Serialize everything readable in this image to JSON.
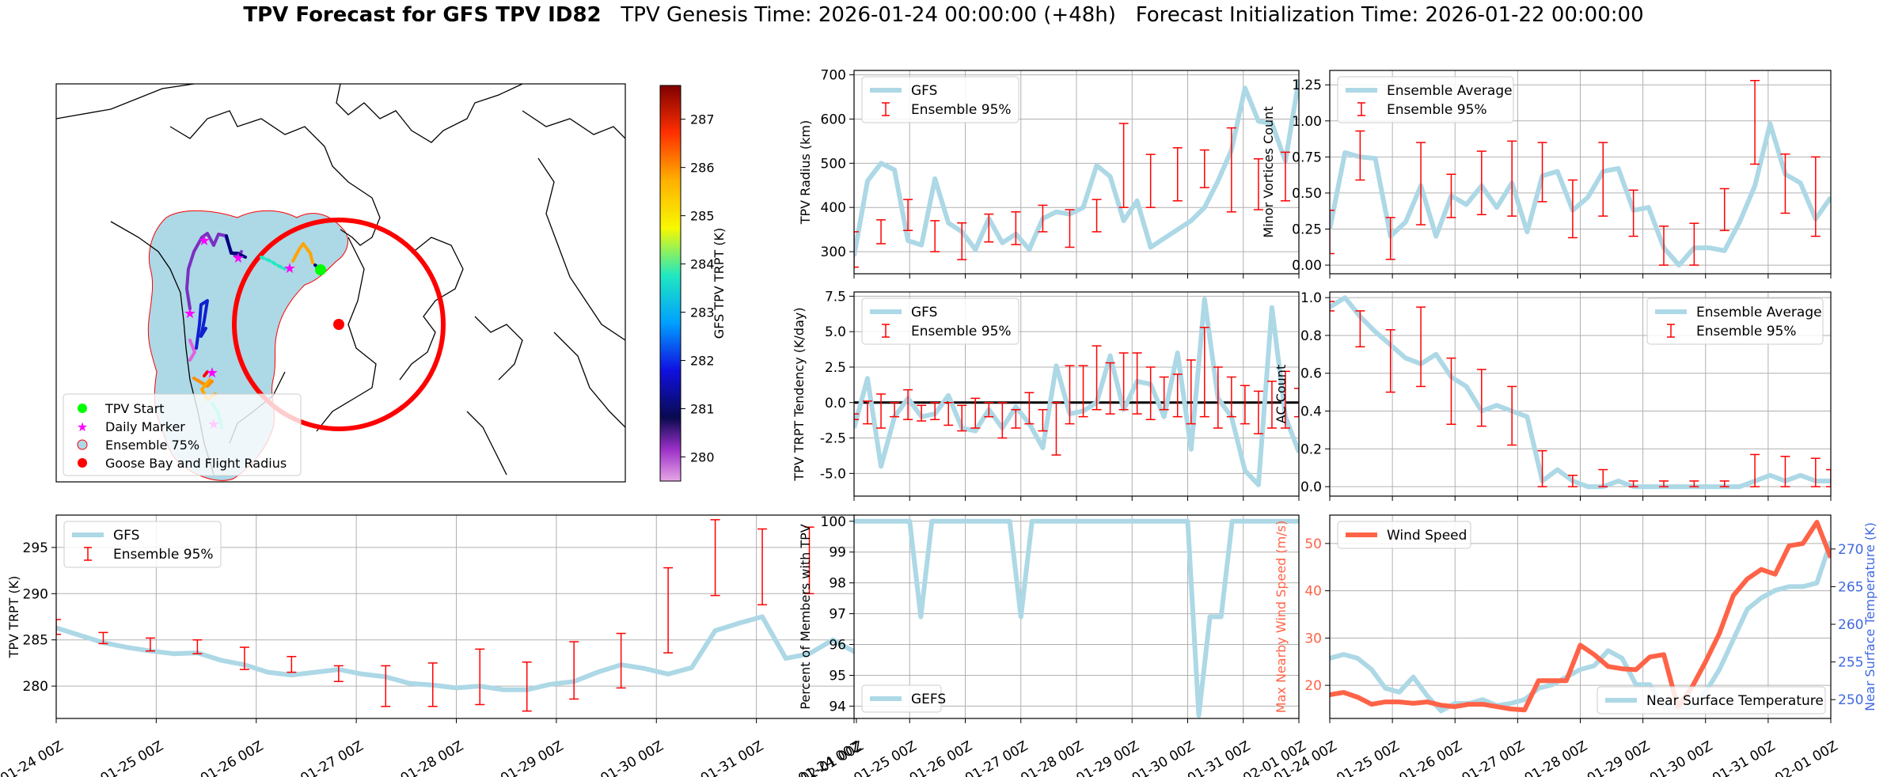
{
  "title": {
    "main": "TPV Forecast for GFS TPV ID82",
    "genesis": "TPV Genesis Time: 2026-01-24 00:00:00 (+48h)",
    "init": "Forecast Initialization Time: 2026-01-22 00:00:00"
  },
  "date_ticks": [
    "01-24 00Z",
    "01-25 00Z",
    "01-26 00Z",
    "01-27 00Z",
    "01-28 00Z",
    "01-29 00Z",
    "01-30 00Z",
    "01-31 00Z",
    "02-01 00Z"
  ],
  "map": {
    "legend": [
      "TPV Start",
      "Daily Marker",
      "Ensemble 75%",
      "Goose Bay and Flight Radius"
    ],
    "colorbar_label": "GFS TPV TRPT (K)",
    "colorbar_ticks": [
      280,
      281,
      282,
      283,
      284,
      285,
      286,
      287
    ],
    "colorbar_range": [
      279.5,
      287.7
    ]
  },
  "chart_data": [
    {
      "type": "line",
      "id": "radius",
      "ylabel": "TPV Radius (km)",
      "ylim": [
        250,
        710
      ],
      "yticks": [
        300,
        400,
        500,
        600,
        700
      ],
      "legend": [
        "GFS",
        "Ensemble 95%"
      ],
      "legend_loc": "upper-left",
      "x_start": "2026-01-24 00Z",
      "x_step_hours": 6,
      "series": [
        {
          "name": "GFS",
          "color": "#add8e6",
          "values": [
            290,
            460,
            500,
            485,
            325,
            315,
            465,
            365,
            345,
            305,
            375,
            320,
            340,
            305,
            375,
            390,
            385,
            400,
            495,
            470,
            370,
            415,
            310,
            330,
            350,
            370,
            400,
            460,
            530,
            670,
            595,
            590,
            505,
            690
          ]
        }
      ],
      "errorbars": [
        {
          "x_index": 0,
          "low": 265,
          "high": 345
        },
        {
          "x_index": 2,
          "low": 318,
          "high": 372
        },
        {
          "x_index": 4,
          "low": 348,
          "high": 418
        },
        {
          "x_index": 6,
          "low": 300,
          "high": 370
        },
        {
          "x_index": 8,
          "low": 282,
          "high": 365
        },
        {
          "x_index": 10,
          "low": 322,
          "high": 385
        },
        {
          "x_index": 12,
          "low": 316,
          "high": 390
        },
        {
          "x_index": 14,
          "low": 345,
          "high": 405
        },
        {
          "x_index": 16,
          "low": 310,
          "high": 395
        },
        {
          "x_index": 18,
          "low": 345,
          "high": 418
        },
        {
          "x_index": 20,
          "low": 400,
          "high": 590
        },
        {
          "x_index": 22,
          "low": 400,
          "high": 520
        },
        {
          "x_index": 24,
          "low": 415,
          "high": 535
        },
        {
          "x_index": 26,
          "low": 445,
          "high": 530
        },
        {
          "x_index": 28,
          "low": 390,
          "high": 580
        },
        {
          "x_index": 30,
          "low": 395,
          "high": 510
        },
        {
          "x_index": 32,
          "low": 415,
          "high": 525
        }
      ]
    },
    {
      "type": "line",
      "id": "minor",
      "ylabel": "Minor Vortices Count",
      "ylim": [
        -0.06,
        1.35
      ],
      "yticks": [
        0.0,
        0.25,
        0.5,
        0.75,
        1.0,
        1.25
      ],
      "legend": [
        "Ensemble Average",
        "Ensemble 95%"
      ],
      "legend_loc": "upper-left",
      "series": [
        {
          "name": "Ensemble Average",
          "color": "#add8e6",
          "values": [
            0.25,
            0.78,
            0.75,
            0.74,
            0.2,
            0.3,
            0.55,
            0.2,
            0.48,
            0.42,
            0.55,
            0.4,
            0.57,
            0.23,
            0.62,
            0.65,
            0.38,
            0.47,
            0.65,
            0.67,
            0.38,
            0.4,
            0.12,
            0.0,
            0.12,
            0.12,
            0.1,
            0.3,
            0.55,
            0.98,
            0.63,
            0.57,
            0.32,
            0.47
          ]
        }
      ],
      "errorbars": [
        {
          "x_index": 0,
          "low": 0.08,
          "high": 0.38
        },
        {
          "x_index": 2,
          "low": 0.59,
          "high": 0.93
        },
        {
          "x_index": 4,
          "low": 0.04,
          "high": 0.33
        },
        {
          "x_index": 6,
          "low": 0.28,
          "high": 0.85
        },
        {
          "x_index": 8,
          "low": 0.33,
          "high": 0.63
        },
        {
          "x_index": 10,
          "low": 0.35,
          "high": 0.79
        },
        {
          "x_index": 12,
          "low": 0.34,
          "high": 0.86
        },
        {
          "x_index": 14,
          "low": 0.44,
          "high": 0.85
        },
        {
          "x_index": 16,
          "low": 0.19,
          "high": 0.59
        },
        {
          "x_index": 18,
          "low": 0.34,
          "high": 0.85
        },
        {
          "x_index": 20,
          "low": 0.2,
          "high": 0.52
        },
        {
          "x_index": 22,
          "low": 0.0,
          "high": 0.27
        },
        {
          "x_index": 24,
          "low": 0.0,
          "high": 0.29
        },
        {
          "x_index": 26,
          "low": 0.24,
          "high": 0.53
        },
        {
          "x_index": 28,
          "low": 0.7,
          "high": 1.28
        },
        {
          "x_index": 30,
          "low": 0.36,
          "high": 0.77
        },
        {
          "x_index": 32,
          "low": 0.2,
          "high": 0.75
        }
      ]
    },
    {
      "type": "line",
      "id": "tendency",
      "ylabel": "TPV TRPT Tendency (K/day)",
      "ylim": [
        -6.6,
        7.8
      ],
      "yticks": [
        -5.0,
        -2.5,
        0.0,
        2.5,
        5.0,
        7.5
      ],
      "zero_line": true,
      "legend": [
        "GFS",
        "Ensemble 95%"
      ],
      "legend_loc": "upper-left",
      "series": [
        {
          "name": "GFS",
          "color": "#add8e6",
          "values": [
            -1.8,
            1.7,
            -4.5,
            -1.0,
            0.3,
            -1.0,
            -0.8,
            0.5,
            -1.8,
            -2.0,
            -0.5,
            -1.8,
            -0.3,
            -1.5,
            -3.2,
            2.6,
            -0.8,
            -0.6,
            0.0,
            3.3,
            -0.5,
            1.5,
            1.3,
            -1.0,
            3.5,
            -3.3,
            7.3,
            0.3,
            -1.0,
            -4.8,
            -5.8,
            6.7,
            -1.0,
            -3.5
          ]
        }
      ],
      "errorbars": [
        {
          "x_index": 0,
          "low": -1.2,
          "high": -0.8
        },
        {
          "x_index": 1,
          "low": -1.5,
          "high": 0.1
        },
        {
          "x_index": 2,
          "low": -1.8,
          "high": 0.6
        },
        {
          "x_index": 3,
          "low": -1.0,
          "high": 0.0
        },
        {
          "x_index": 4,
          "low": -1.2,
          "high": 0.9
        },
        {
          "x_index": 5,
          "low": -1.3,
          "high": -0.2
        },
        {
          "x_index": 6,
          "low": -1.2,
          "high": 0.0
        },
        {
          "x_index": 7,
          "low": -1.6,
          "high": 0.0
        },
        {
          "x_index": 8,
          "low": -2.0,
          "high": -0.2
        },
        {
          "x_index": 9,
          "low": -1.8,
          "high": 0.3
        },
        {
          "x_index": 10,
          "low": -1.0,
          "high": 0.0
        },
        {
          "x_index": 11,
          "low": -2.5,
          "high": 0.0
        },
        {
          "x_index": 12,
          "low": -1.8,
          "high": -0.5
        },
        {
          "x_index": 13,
          "low": -1.5,
          "high": 0.7
        },
        {
          "x_index": 14,
          "low": -2.0,
          "high": -0.5
        },
        {
          "x_index": 15,
          "low": -3.7,
          "high": 0.0
        },
        {
          "x_index": 16,
          "low": -1.5,
          "high": 2.6
        },
        {
          "x_index": 17,
          "low": -1.0,
          "high": 2.6
        },
        {
          "x_index": 18,
          "low": -0.5,
          "high": 4.0
        },
        {
          "x_index": 19,
          "low": -0.8,
          "high": 2.8
        },
        {
          "x_index": 20,
          "low": -0.5,
          "high": 3.5
        },
        {
          "x_index": 21,
          "low": -0.8,
          "high": 3.5
        },
        {
          "x_index": 22,
          "low": -1.2,
          "high": 2.5
        },
        {
          "x_index": 23,
          "low": -0.5,
          "high": 1.8
        },
        {
          "x_index": 24,
          "low": -1.0,
          "high": 2.0
        },
        {
          "x_index": 25,
          "low": -1.5,
          "high": 3.0
        },
        {
          "x_index": 26,
          "low": -1.0,
          "high": 5.3
        },
        {
          "x_index": 27,
          "low": -1.8,
          "high": 2.5
        },
        {
          "x_index": 28,
          "low": -1.0,
          "high": 1.8
        },
        {
          "x_index": 29,
          "low": -1.5,
          "high": 1.2
        },
        {
          "x_index": 30,
          "low": -2.2,
          "high": 0.8
        },
        {
          "x_index": 31,
          "low": -1.8,
          "high": 1.5
        },
        {
          "x_index": 32,
          "low": -1.8,
          "high": 2.2
        },
        {
          "x_index": 33,
          "low": -1.0,
          "high": 1.0
        }
      ]
    },
    {
      "type": "line",
      "id": "ac",
      "ylabel": "AC Count",
      "ylim": [
        -0.05,
        1.03
      ],
      "yticks": [
        0.0,
        0.2,
        0.4,
        0.6,
        0.8,
        1.0
      ],
      "legend": [
        "Ensemble Average",
        "Ensemble 95%"
      ],
      "legend_loc": "upper-right",
      "series": [
        {
          "name": "Ensemble Average",
          "color": "#add8e6",
          "values": [
            0.95,
            1.0,
            0.9,
            0.82,
            0.75,
            0.68,
            0.65,
            0.7,
            0.58,
            0.53,
            0.4,
            0.43,
            0.4,
            0.37,
            0.03,
            0.09,
            0.03,
            0.0,
            0.0,
            0.03,
            0.0,
            0.0,
            0.0,
            0.0,
            0.0,
            0.0,
            0.0,
            0.0,
            0.03,
            0.06,
            0.03,
            0.06,
            0.03,
            0.03
          ]
        }
      ],
      "errorbars": [
        {
          "x_index": 0,
          "low": 0.93,
          "high": 0.98
        },
        {
          "x_index": 2,
          "low": 0.74,
          "high": 0.93
        },
        {
          "x_index": 4,
          "low": 0.5,
          "high": 0.83
        },
        {
          "x_index": 6,
          "low": 0.53,
          "high": 0.95
        },
        {
          "x_index": 8,
          "low": 0.33,
          "high": 0.68
        },
        {
          "x_index": 10,
          "low": 0.32,
          "high": 0.62
        },
        {
          "x_index": 12,
          "low": 0.22,
          "high": 0.53
        },
        {
          "x_index": 14,
          "low": 0.0,
          "high": 0.19
        },
        {
          "x_index": 16,
          "low": 0.0,
          "high": 0.06
        },
        {
          "x_index": 18,
          "low": 0.0,
          "high": 0.09
        },
        {
          "x_index": 20,
          "low": 0.0,
          "high": 0.03
        },
        {
          "x_index": 22,
          "low": 0.0,
          "high": 0.03
        },
        {
          "x_index": 24,
          "low": 0.0,
          "high": 0.03
        },
        {
          "x_index": 26,
          "low": 0.0,
          "high": 0.03
        },
        {
          "x_index": 28,
          "low": 0.0,
          "high": 0.17
        },
        {
          "x_index": 30,
          "low": 0.0,
          "high": 0.16
        },
        {
          "x_index": 32,
          "low": 0.0,
          "high": 0.15
        },
        {
          "x_index": 33,
          "low": 0.0,
          "high": 0.09
        }
      ]
    },
    {
      "type": "line",
      "id": "trpt",
      "ylabel": "TPV TRPT (K)",
      "ylim": [
        276.5,
        298.5
      ],
      "yticks": [
        280,
        285,
        290,
        295
      ],
      "legend": [
        "GFS",
        "Ensemble 95%"
      ],
      "legend_loc": "upper-left",
      "series": [
        {
          "name": "GFS",
          "color": "#add8e6",
          "values": [
            286.3,
            285.5,
            284.7,
            284.2,
            283.8,
            283.5,
            283.6,
            282.8,
            282.3,
            281.5,
            281.2,
            281.5,
            281.8,
            281.3,
            281.0,
            280.3,
            280.1,
            279.8,
            280.0,
            279.6,
            279.6,
            280.2,
            280.5,
            281.5,
            282.3,
            281.9,
            281.3,
            282.0,
            286.0,
            286.8,
            287.5,
            283.0,
            283.5,
            285.0,
            283.6
          ]
        }
      ],
      "errorbars": [
        {
          "x_index": 0,
          "low": 285.6,
          "high": 287.2
        },
        {
          "x_index": 2,
          "low": 284.6,
          "high": 285.8
        },
        {
          "x_index": 4,
          "low": 283.8,
          "high": 285.2
        },
        {
          "x_index": 6,
          "low": 283.5,
          "high": 285.0
        },
        {
          "x_index": 8,
          "low": 281.8,
          "high": 284.2
        },
        {
          "x_index": 10,
          "low": 281.5,
          "high": 283.2
        },
        {
          "x_index": 12,
          "low": 280.5,
          "high": 282.2
        },
        {
          "x_index": 14,
          "low": 277.8,
          "high": 282.2
        },
        {
          "x_index": 16,
          "low": 277.8,
          "high": 282.5
        },
        {
          "x_index": 18,
          "low": 278.0,
          "high": 284.0
        },
        {
          "x_index": 20,
          "low": 277.3,
          "high": 282.6
        },
        {
          "x_index": 22,
          "low": 278.6,
          "high": 284.8
        },
        {
          "x_index": 24,
          "low": 279.8,
          "high": 285.7
        },
        {
          "x_index": 26,
          "low": 283.6,
          "high": 292.8
        },
        {
          "x_index": 28,
          "low": 289.8,
          "high": 298.0
        },
        {
          "x_index": 30,
          "low": 288.8,
          "high": 297.0
        },
        {
          "x_index": 32,
          "low": 290.0,
          "high": 297.2
        }
      ]
    },
    {
      "type": "line",
      "id": "percent",
      "ylabel": "Percent of Members with TPV",
      "ylim": [
        93.6,
        100.2
      ],
      "yticks": [
        94,
        95,
        96,
        97,
        98,
        99,
        100
      ],
      "legend": [
        "GEFS"
      ],
      "legend_loc": "lower-left",
      "series": [
        {
          "name": "GEFS",
          "color": "#add8e6",
          "values": [
            100,
            100,
            100,
            100,
            100,
            100,
            96.9,
            100,
            100,
            100,
            100,
            100,
            100,
            100,
            100,
            96.9,
            100,
            100,
            100,
            100,
            100,
            100,
            100,
            100,
            100,
            100,
            100,
            100,
            100,
            100,
            100,
            93.7,
            96.9,
            96.9,
            100,
            100,
            100,
            100,
            100,
            100,
            100
          ]
        }
      ]
    },
    {
      "type": "line",
      "id": "wind",
      "ylabel": "Max Nearby Wind Speed (m/s)",
      "y2label": "Near Surface Temperature (K)",
      "ylim": [
        13,
        56
      ],
      "yticks": [
        20,
        30,
        40,
        50
      ],
      "y2lim": [
        247.5,
        274.5
      ],
      "y2ticks": [
        250,
        255,
        260,
        265,
        270
      ],
      "legend": [
        "Wind Speed",
        "Near Surface Temperature"
      ],
      "series": [
        {
          "name": "Wind Speed",
          "axis": "left",
          "color": "#ff6347",
          "values": [
            18.0,
            18.5,
            17.5,
            16.0,
            16.5,
            16.5,
            16.2,
            16.5,
            15.8,
            15.5,
            16.0,
            16.0,
            15.5,
            15.0,
            14.8,
            21.0,
            21.0,
            21.0,
            28.5,
            26.5,
            24.0,
            23.5,
            23.3,
            26.0,
            26.5,
            15.5,
            19.5,
            25.0,
            31.0,
            39.0,
            42.5,
            44.5,
            43.5,
            49.5,
            50.0,
            54.5,
            47.0
          ]
        },
        {
          "name": "Near Surface Temperature",
          "axis": "right",
          "color": "#add8e6",
          "values": [
            255.5,
            256.0,
            255.5,
            254.0,
            251.5,
            251.0,
            253.0,
            250.5,
            248.5,
            249.5,
            249.5,
            250.0,
            249.2,
            249.5,
            250.0,
            251.5,
            252.0,
            253.0,
            254.0,
            254.5,
            256.5,
            255.5,
            252.0,
            252.0,
            249.0,
            249.0,
            249.0,
            251.0,
            254.0,
            258.0,
            262.0,
            263.5,
            264.5,
            265.0,
            265.0,
            265.5,
            271.0
          ]
        }
      ]
    }
  ]
}
